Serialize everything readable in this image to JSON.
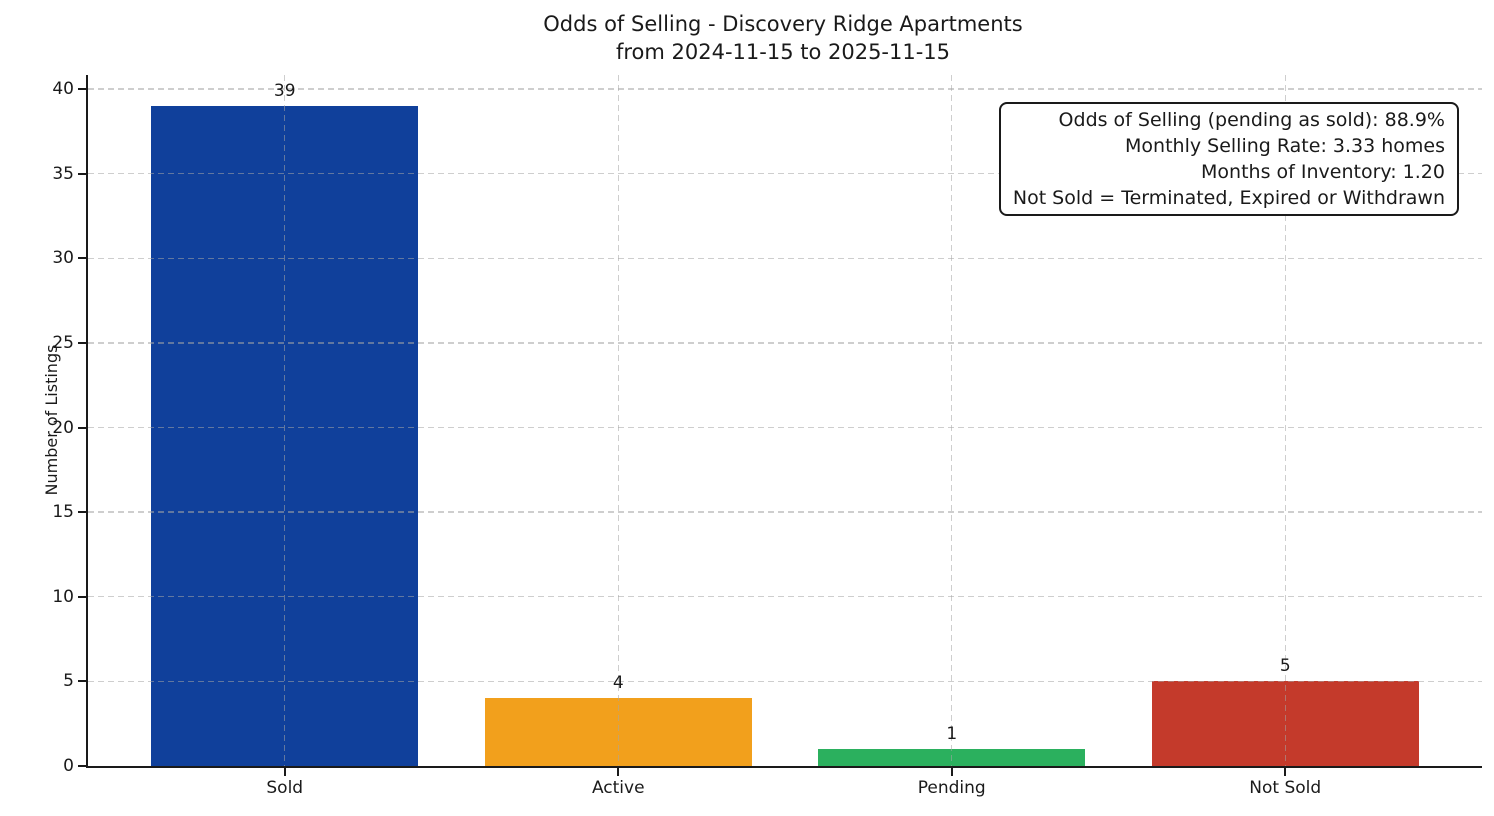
{
  "figure": {
    "title_line1": "Odds of Selling - Discovery Ridge Apartments",
    "title_line2": "from 2024-11-15 to 2025-11-15"
  },
  "annotation": {
    "lines": [
      "Odds of Selling (pending as sold): 88.9%",
      "Monthly Selling Rate: 3.33 homes",
      "Months of Inventory: 1.20",
      "Not Sold = Terminated, Expired or Withdrawn"
    ]
  },
  "chart_data": {
    "type": "bar",
    "title": "Odds of Selling - Discovery Ridge Apartments from 2024-11-15 to 2025-11-15",
    "categories": [
      "Sold",
      "Active",
      "Pending",
      "Not Sold"
    ],
    "values": [
      39,
      4,
      1,
      5
    ],
    "value_labels": [
      "39",
      "4",
      "1",
      "5"
    ],
    "bar_colors": [
      "#10409B",
      "#F2A01C",
      "#2BB05E",
      "#C43A2B"
    ],
    "xlabel": "",
    "ylabel": "Number of Listings",
    "ylim": [
      0,
      40.83
    ],
    "yticks": [
      0,
      5,
      10,
      15,
      20,
      25,
      30,
      35,
      40
    ],
    "grid": {
      "style": "dashed",
      "axes": "both",
      "color": "#d3d3d3",
      "drawn_above_bars": true
    },
    "legend_position": "none",
    "annotations": [
      "Odds of Selling (pending as sold): 88.9%",
      "Monthly Selling Rate: 3.33 homes",
      "Months of Inventory: 1.20",
      "Not Sold = Terminated, Expired or Withdrawn"
    ],
    "annotation_box_position": "top-right"
  }
}
